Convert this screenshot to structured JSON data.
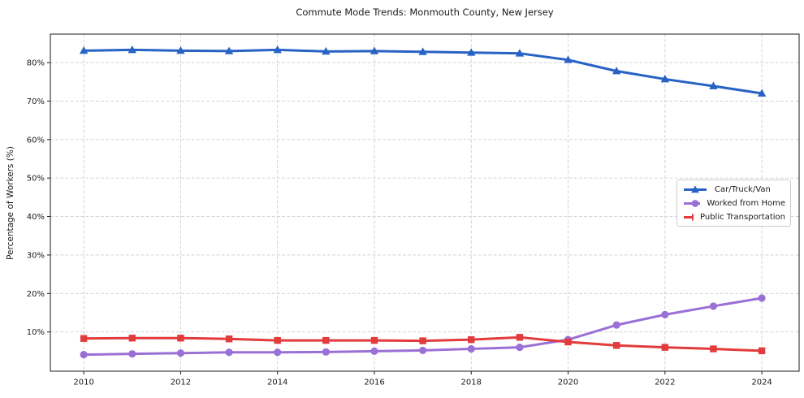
{
  "figure": {
    "background": "#ffffff",
    "text_color": "#1a1a1a",
    "grid_color": "#cdcdcd",
    "frame_color": "#1a1a1a"
  },
  "chart_data": {
    "type": "line",
    "title": "Commute Mode Trends: Monmouth County, New Jersey",
    "xlabel": "",
    "ylabel": "Percentage of Workers (%)",
    "x": [
      2010,
      2011,
      2012,
      2013,
      2014,
      2015,
      2016,
      2017,
      2018,
      2019,
      2020,
      2021,
      2022,
      2023,
      2024
    ],
    "series": [
      {
        "name": "Car/Truck/Van",
        "color": "#2762c4",
        "marker": "triangle",
        "values": [
          83.1,
          83.3,
          83.1,
          83.0,
          83.3,
          82.9,
          83.0,
          82.8,
          82.6,
          82.4,
          80.7,
          77.8,
          75.7,
          73.9,
          72.0
        ]
      },
      {
        "name": "Worked from Home",
        "color": "#9b70d6",
        "marker": "circle",
        "values": [
          4.1,
          4.3,
          4.5,
          4.7,
          4.7,
          4.8,
          5.0,
          5.2,
          5.6,
          6.0,
          8.0,
          11.8,
          14.5,
          16.7,
          18.8
        ]
      },
      {
        "name": "Public Transportation",
        "color": "#e23b3b",
        "marker": "square",
        "values": [
          8.3,
          8.4,
          8.4,
          8.2,
          7.8,
          7.8,
          7.8,
          7.7,
          8.0,
          8.6,
          7.4,
          6.5,
          6.0,
          5.6,
          5.1
        ]
      }
    ],
    "xticks": [
      2010,
      2012,
      2014,
      2016,
      2018,
      2020,
      2022,
      2024
    ],
    "yticks": [
      10,
      20,
      30,
      40,
      50,
      60,
      70,
      80
    ],
    "ytick_suffix": "%",
    "xlim": [
      2009.31,
      2024.77
    ],
    "ylim": [
      -0.2,
      87.4
    ],
    "grid": true,
    "legend_position": "middle-right"
  }
}
